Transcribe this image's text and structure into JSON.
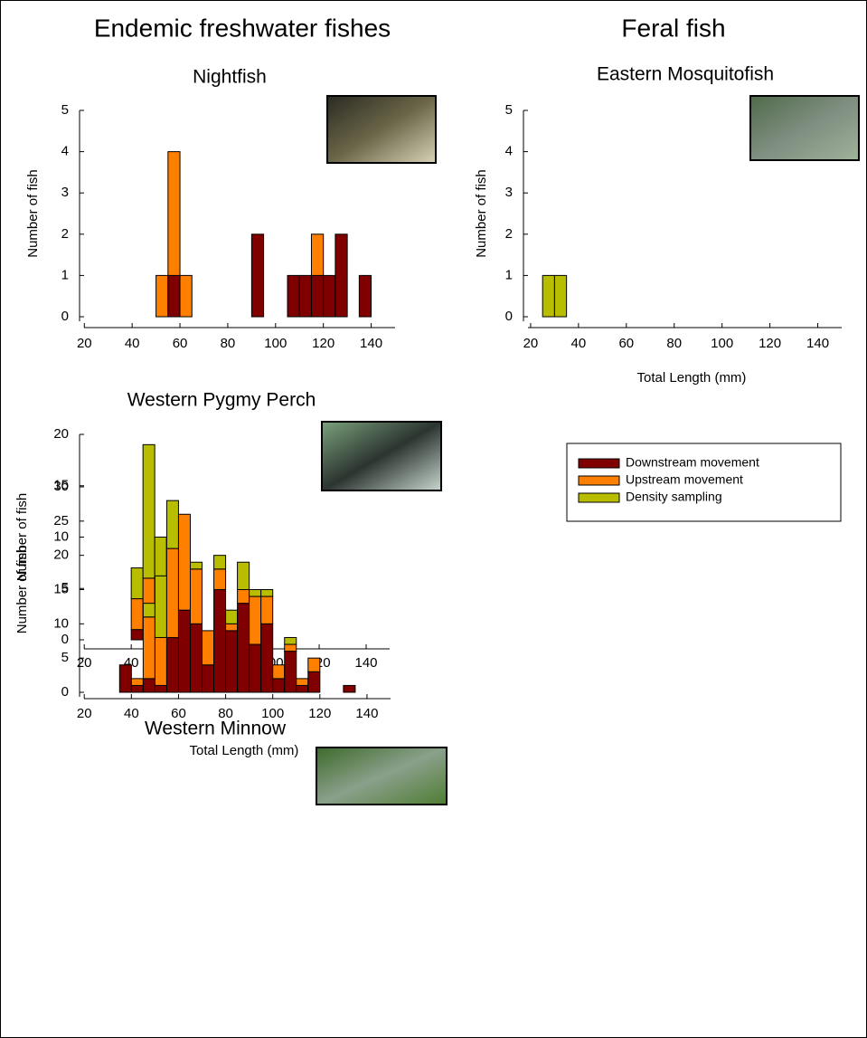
{
  "headings": [
    "Endemic freshwater fishes",
    "Feral fish"
  ],
  "legend": [
    {
      "name": "Downstream movement",
      "color": "#800000"
    },
    {
      "name": "Upstream movement",
      "color": "#ff8000"
    },
    {
      "name": "Density sampling",
      "color": "#b8bd00"
    }
  ],
  "chart_data": [
    {
      "type": "histogram",
      "stacked": true,
      "title": "Nightfish",
      "ylabel": "Number of fish",
      "bins": [
        50,
        55,
        60,
        65,
        70,
        75,
        80,
        85,
        90,
        95,
        100,
        105,
        110,
        115,
        120,
        125,
        130,
        135,
        140
      ],
      "series": [
        {
          "color": "#800000",
          "values": [
            0,
            1,
            0,
            0,
            0,
            0,
            0,
            0,
            2,
            0,
            0,
            1,
            1,
            1,
            1,
            2,
            0,
            1
          ]
        },
        {
          "color": "#ff8000",
          "values": [
            1,
            3,
            1,
            0,
            0,
            0,
            0,
            0,
            0,
            0,
            0,
            0,
            0,
            1,
            0,
            0,
            0,
            0
          ]
        },
        {
          "color": "#b8bd00",
          "values": [
            0,
            0,
            0,
            0,
            0,
            0,
            0,
            0,
            0,
            0,
            0,
            0,
            0,
            0,
            0,
            0,
            0,
            0
          ]
        }
      ],
      "xlim": [
        18,
        150
      ],
      "xticks": [
        20,
        40,
        60,
        80,
        100,
        120,
        140
      ],
      "ylim": [
        0,
        5
      ],
      "yticks": [
        0,
        1,
        2,
        3,
        4,
        5
      ]
    },
    {
      "type": "histogram",
      "stacked": true,
      "title": "Eastern Mosquitofish",
      "ylabel": "Number of fish",
      "xlabel": "Total Length (mm)",
      "bins": [
        25,
        30,
        35
      ],
      "series": [
        {
          "color": "#800000",
          "values": [
            0,
            0
          ]
        },
        {
          "color": "#ff8000",
          "values": [
            0,
            0
          ]
        },
        {
          "color": "#b8bd00",
          "values": [
            1,
            1
          ]
        }
      ],
      "xlim": [
        17,
        150
      ],
      "xticks": [
        20,
        40,
        60,
        80,
        100,
        120,
        140
      ],
      "ylim": [
        0,
        5
      ],
      "yticks": [
        0,
        1,
        2,
        3,
        4,
        5
      ]
    },
    {
      "type": "histogram",
      "stacked": true,
      "title": "Western Pygmy Perch",
      "ylabel": "Number of fish",
      "bins": [
        40,
        45,
        50,
        55,
        60,
        65
      ],
      "series": [
        {
          "color": "#800000",
          "values": [
            1,
            0,
            1,
            0,
            0
          ]
        },
        {
          "color": "#ff8000",
          "values": [
            3,
            6,
            4,
            1,
            0
          ]
        },
        {
          "color": "#b8bd00",
          "values": [
            3,
            13,
            5,
            0,
            1
          ]
        }
      ],
      "xlim": [
        18,
        150
      ],
      "xticks": [
        20,
        40,
        60,
        80,
        100,
        120,
        140
      ],
      "ylim": [
        0,
        20
      ],
      "yticks": [
        0,
        5,
        10,
        15,
        20
      ]
    },
    {
      "type": "histogram",
      "stacked": true,
      "title": "Western Minnow",
      "ylabel": "Number of fish",
      "xlabel": "Total Length (mm)",
      "bins": [
        35,
        40,
        45,
        50,
        55,
        60,
        65,
        70,
        75,
        80,
        85,
        90,
        95,
        100,
        105,
        110,
        115,
        120,
        125,
        130,
        135
      ],
      "series": [
        {
          "color": "#800000",
          "values": [
            4,
            1,
            2,
            1,
            8,
            12,
            10,
            4,
            15,
            9,
            13,
            7,
            10,
            2,
            6,
            1,
            3,
            0,
            0,
            1
          ]
        },
        {
          "color": "#ff8000",
          "values": [
            0,
            1,
            9,
            7,
            13,
            14,
            8,
            5,
            3,
            1,
            2,
            7,
            4,
            2,
            1,
            1,
            2,
            0,
            0,
            0
          ]
        },
        {
          "color": "#b8bd00",
          "values": [
            0,
            0,
            2,
            9,
            7,
            0,
            1,
            0,
            2,
            2,
            4,
            1,
            1,
            0,
            1,
            0,
            0,
            0,
            0,
            0
          ]
        }
      ],
      "xlim": [
        18,
        150
      ],
      "xticks": [
        20,
        40,
        60,
        80,
        100,
        120,
        140
      ],
      "ylim": [
        0,
        30
      ],
      "yticks": [
        0,
        5,
        10,
        15,
        20,
        25,
        30
      ]
    }
  ]
}
